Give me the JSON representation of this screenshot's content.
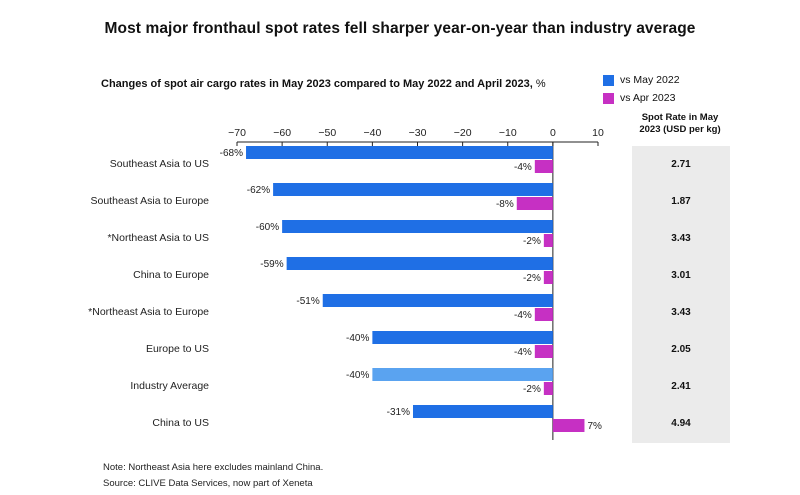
{
  "header": {
    "title": "Most major fronthaul spot rates fell sharper year-on-year than industry average",
    "subtitle": "Changes of spot air cargo rates in May 2023 compared to May 2022 and April 2023,",
    "subtitle_unit": " %"
  },
  "legend": {
    "series1": "vs May 2022",
    "series2": "vs Apr 2023"
  },
  "colors": {
    "series1": "#1f6fe5",
    "series1_highlight": "#5aa3f0",
    "series2": "#c630c3",
    "panel_bg": "#ebebeb"
  },
  "spot_panel": {
    "heading_line1": "Spot Rate in May",
    "heading_line2": "2023 (USD per kg)",
    "values": [
      "2.71",
      "1.87",
      "3.43",
      "3.01",
      "3.43",
      "2.05",
      "2.41",
      "4.94"
    ]
  },
  "notes": {
    "note": "Note: Northeast Asia here excludes mainland China.",
    "source": "Source: CLIVE Data Services, now part of Xeneta"
  },
  "chart_data": {
    "type": "bar",
    "orientation": "horizontal",
    "title": "Changes of spot air cargo rates in May 2023 compared to May 2022 and April 2023, %",
    "xlim": [
      -70,
      10
    ],
    "xticks": [
      -70,
      -60,
      -50,
      -40,
      -30,
      -20,
      -10,
      0,
      10
    ],
    "categories": [
      "Southeast Asia to US",
      "Southeast Asia to Europe",
      "*Northeast Asia to US",
      "China to Europe",
      "*Northeast Asia to Europe",
      "Europe to US",
      "Industry Average",
      "China to US"
    ],
    "series": [
      {
        "name": "vs May 2022",
        "values": [
          -68,
          -62,
          -60,
          -59,
          -51,
          -40,
          -40,
          -31
        ],
        "labels": [
          "-68%",
          "-62%",
          "-60%",
          "-59%",
          "-51%",
          "-40%",
          "-40%",
          "-31%"
        ]
      },
      {
        "name": "vs Apr 2023",
        "values": [
          -4,
          -8,
          -2,
          -2,
          -4,
          -4,
          -2,
          7
        ],
        "labels": [
          "-4%",
          "-8%",
          "-2%",
          "-2%",
          "-4%",
          "-4%",
          "-2%",
          "7%"
        ]
      }
    ],
    "highlight_category": "Industry Average"
  }
}
